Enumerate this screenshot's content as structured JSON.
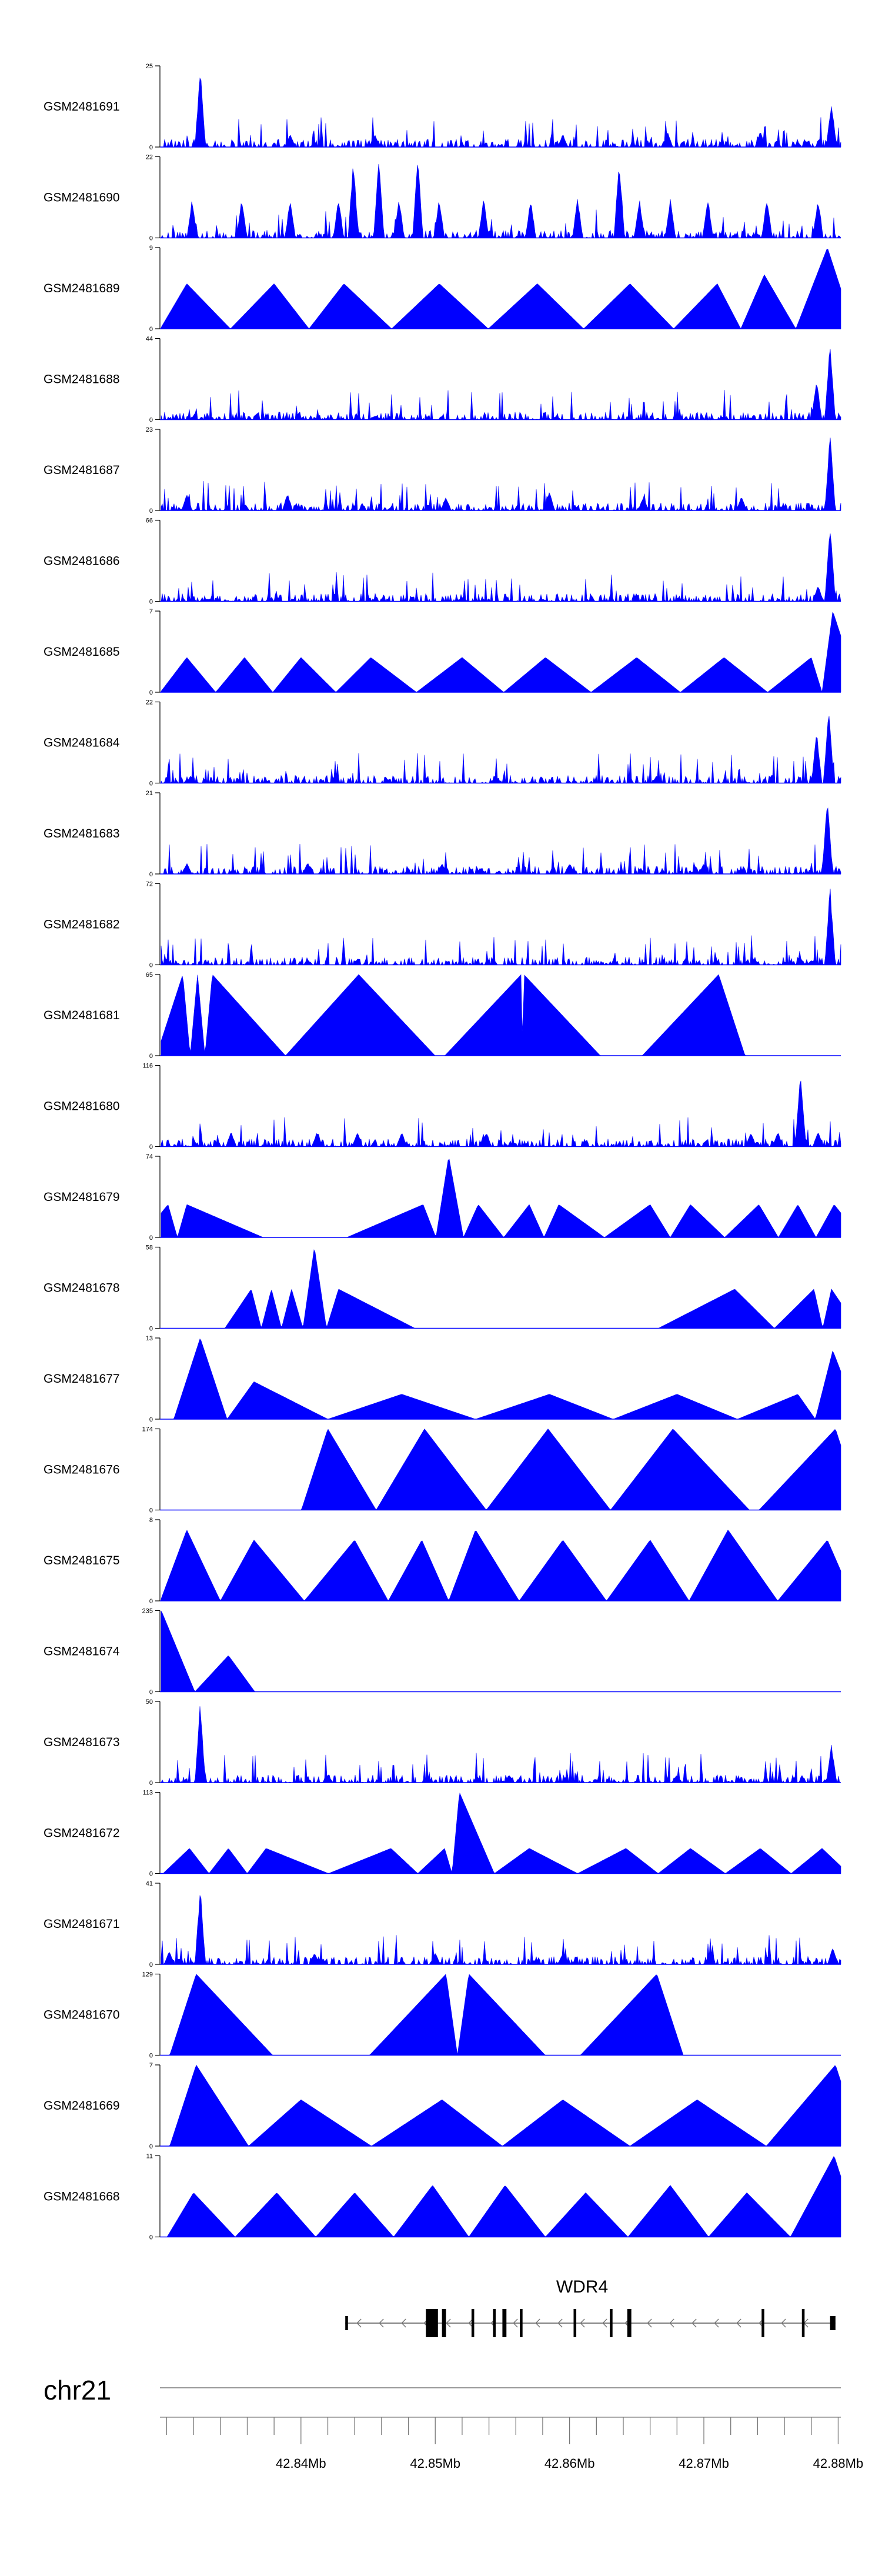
{
  "chart_data": {
    "type": "area",
    "title": "",
    "xlabel": "",
    "ylabel": "",
    "chromosome": "chr21",
    "xlim": [
      42.8295,
      42.8802
    ],
    "x_ticks": [
      42.84,
      42.85,
      42.86,
      42.87,
      42.88
    ],
    "x_tick_labels": [
      "42.84Mb",
      "42.85Mb",
      "42.86Mb",
      "42.87Mb",
      "42.88Mb"
    ],
    "series_color": "#0000ff",
    "tracks": [
      {
        "name": "GSM2481691",
        "ymax": 25,
        "ytick_labels": [
          "25",
          "0"
        ],
        "peaks": [
          [
            42.8325,
            25
          ],
          [
            42.8392,
            4
          ],
          [
            42.8455,
            4
          ],
          [
            42.8595,
            4
          ],
          [
            42.8673,
            5
          ],
          [
            42.8742,
            5
          ],
          [
            42.8795,
            14
          ]
        ]
      },
      {
        "name": "GSM2481690",
        "ymax": 22,
        "ytick_labels": [
          "22",
          "0"
        ],
        "peaks": [
          [
            42.8319,
            11
          ],
          [
            42.8356,
            11
          ],
          [
            42.8392,
            11
          ],
          [
            42.8428,
            11
          ],
          [
            42.8439,
            22
          ],
          [
            42.8458,
            22
          ],
          [
            42.8473,
            11
          ],
          [
            42.8487,
            22
          ],
          [
            42.8503,
            11
          ],
          [
            42.8536,
            11
          ],
          [
            42.8571,
            11
          ],
          [
            42.8606,
            11
          ],
          [
            42.8637,
            22
          ],
          [
            42.8652,
            11
          ],
          [
            42.8675,
            11
          ],
          [
            42.8703,
            11
          ],
          [
            42.8747,
            11
          ],
          [
            42.8785,
            11
          ]
        ]
      },
      {
        "name": "GSM2481689",
        "ymax": 9,
        "ytick_labels": [
          "9",
          "0"
        ],
        "peaks": [
          [
            42.8315,
            5
          ],
          [
            42.838,
            5
          ],
          [
            42.8432,
            5
          ],
          [
            42.8503,
            5
          ],
          [
            42.8576,
            5
          ],
          [
            42.8645,
            5
          ],
          [
            42.871,
            5
          ],
          [
            42.8745,
            6
          ],
          [
            42.8792,
            9
          ]
        ]
      },
      {
        "name": "GSM2481688",
        "ymax": 44,
        "ytick_labels": [
          "44",
          "0"
        ],
        "peaks": [
          [
            42.832,
            2
          ],
          [
            42.8455,
            2
          ],
          [
            42.859,
            2
          ],
          [
            42.8715,
            2
          ],
          [
            42.8784,
            22
          ],
          [
            42.8794,
            44
          ]
        ]
      },
      {
        "name": "GSM2481687",
        "ymax": 23,
        "ytick_labels": [
          "23",
          "0"
        ],
        "peaks": [
          [
            42.8315,
            5
          ],
          [
            42.839,
            5
          ],
          [
            42.8508,
            4
          ],
          [
            42.8585,
            6
          ],
          [
            42.8655,
            4
          ],
          [
            42.8728,
            4
          ],
          [
            42.8794,
            23
          ]
        ]
      },
      {
        "name": "GSM2481686",
        "ymax": 66,
        "ytick_labels": [
          "66",
          "0"
        ],
        "peaks": [
          [
            42.833,
            2
          ],
          [
            42.858,
            2
          ],
          [
            42.8785,
            14
          ],
          [
            42.8794,
            66
          ]
        ]
      },
      {
        "name": "GSM2481685",
        "ymax": 7,
        "ytick_labels": [
          "7",
          "0"
        ],
        "peaks": [
          [
            42.8315,
            3
          ],
          [
            42.8358,
            3
          ],
          [
            42.84,
            3
          ],
          [
            42.8452,
            3
          ],
          [
            42.852,
            3
          ],
          [
            42.8582,
            3
          ],
          [
            42.865,
            3
          ],
          [
            42.8715,
            3
          ],
          [
            42.878,
            3
          ],
          [
            42.8796,
            7
          ]
        ]
      },
      {
        "name": "GSM2481684",
        "ymax": 22,
        "ytick_labels": [
          "22",
          "0"
        ],
        "peaks": [
          [
            42.8318,
            2
          ],
          [
            42.8425,
            2
          ],
          [
            42.8545,
            2
          ],
          [
            42.8665,
            2
          ],
          [
            42.8784,
            14
          ],
          [
            42.8793,
            22
          ]
        ]
      },
      {
        "name": "GSM2481683",
        "ymax": 21,
        "ytick_labels": [
          "21",
          "0"
        ],
        "peaks": [
          [
            42.8315,
            3
          ],
          [
            42.8405,
            3
          ],
          [
            42.8505,
            3
          ],
          [
            42.86,
            3
          ],
          [
            42.87,
            3
          ],
          [
            42.8792,
            21
          ]
        ]
      },
      {
        "name": "GSM2481682",
        "ymax": 72,
        "ytick_labels": [
          "72",
          "0"
        ],
        "peaks": [
          [
            42.833,
            2
          ],
          [
            42.878,
            4
          ],
          [
            42.8794,
            72
          ]
        ]
      },
      {
        "name": "GSM2481681",
        "ymax": 65,
        "ytick_labels": [
          "65",
          "0"
        ],
        "peaks": [
          [
            42.8312,
            65
          ],
          [
            42.8323,
            65
          ],
          [
            42.8334,
            65
          ],
          [
            42.8443,
            65
          ],
          [
            42.8564,
            65
          ],
          [
            42.8566,
            65
          ],
          [
            42.8711,
            65
          ]
        ]
      },
      {
        "name": "GSM2481680",
        "ymax": 116,
        "ytick_labels": [
          "116",
          "0"
        ],
        "peaks": [
          [
            42.8348,
            22
          ],
          [
            42.8412,
            22
          ],
          [
            42.8442,
            22
          ],
          [
            42.8475,
            22
          ],
          [
            42.8538,
            22
          ],
          [
            42.8735,
            22
          ],
          [
            42.8755,
            22
          ],
          [
            42.8772,
            116
          ],
          [
            42.8785,
            22
          ]
        ]
      },
      {
        "name": "GSM2481679",
        "ymax": 74,
        "ytick_labels": [
          "74",
          "0"
        ],
        "peaks": [
          [
            42.8301,
            30
          ],
          [
            42.8315,
            30
          ],
          [
            42.8491,
            30
          ],
          [
            42.851,
            74
          ],
          [
            42.8532,
            30
          ],
          [
            42.857,
            30
          ],
          [
            42.8592,
            30
          ],
          [
            42.866,
            30
          ],
          [
            42.869,
            30
          ],
          [
            42.8741,
            30
          ],
          [
            42.877,
            30
          ],
          [
            42.8797,
            30
          ]
        ]
      },
      {
        "name": "GSM2481678",
        "ymax": 58,
        "ytick_labels": [
          "58",
          "0"
        ],
        "peaks": [
          [
            42.8363,
            28
          ],
          [
            42.8378,
            28
          ],
          [
            42.8393,
            28
          ],
          [
            42.841,
            58
          ],
          [
            42.8428,
            28
          ],
          [
            42.8723,
            28
          ],
          [
            42.8782,
            28
          ],
          [
            42.8795,
            28
          ]
        ]
      },
      {
        "name": "GSM2481677",
        "ymax": 13,
        "ytick_labels": [
          "13",
          "0"
        ],
        "peaks": [
          [
            42.8325,
            13
          ],
          [
            42.8365,
            6
          ],
          [
            42.8475,
            4
          ],
          [
            42.8585,
            4
          ],
          [
            42.868,
            4
          ],
          [
            42.877,
            4
          ],
          [
            42.8796,
            11
          ]
        ]
      },
      {
        "name": "GSM2481676",
        "ymax": 174,
        "ytick_labels": [
          "174",
          "0"
        ],
        "peaks": [
          [
            42.842,
            174
          ],
          [
            42.8492,
            174
          ],
          [
            42.8584,
            174
          ],
          [
            42.8677,
            174
          ],
          [
            42.8798,
            174
          ]
        ]
      },
      {
        "name": "GSM2481675",
        "ymax": 8,
        "ytick_labels": [
          "8",
          "0"
        ],
        "peaks": [
          [
            42.8315,
            7
          ],
          [
            42.8365,
            6
          ],
          [
            42.844,
            6
          ],
          [
            42.849,
            6
          ],
          [
            42.853,
            7
          ],
          [
            42.8595,
            6
          ],
          [
            42.866,
            6
          ],
          [
            42.8718,
            7
          ],
          [
            42.8792,
            6
          ]
        ]
      },
      {
        "name": "GSM2481674",
        "ymax": 235,
        "ytick_labels": [
          "235",
          "0"
        ],
        "peaks": [
          [
            42.8296,
            235
          ],
          [
            42.8346,
            105
          ]
        ]
      },
      {
        "name": "GSM2481673",
        "ymax": 50,
        "ytick_labels": [
          "50",
          "0"
        ],
        "peaks": [
          [
            42.8325,
            50
          ],
          [
            42.842,
            5
          ],
          [
            42.8555,
            5
          ],
          [
            42.868,
            5
          ],
          [
            42.8795,
            24
          ]
        ]
      },
      {
        "name": "GSM2481672",
        "ymax": 113,
        "ytick_labels": [
          "113",
          "0"
        ],
        "peaks": [
          [
            42.8317,
            35
          ],
          [
            42.8346,
            35
          ],
          [
            42.8374,
            35
          ],
          [
            42.8467,
            35
          ],
          [
            42.8507,
            35
          ],
          [
            42.8518,
            113
          ],
          [
            42.857,
            35
          ],
          [
            42.8642,
            35
          ],
          [
            42.869,
            35
          ],
          [
            42.8742,
            35
          ],
          [
            42.8788,
            35
          ]
        ]
      },
      {
        "name": "GSM2481671",
        "ymax": 41,
        "ytick_labels": [
          "41",
          "0"
        ],
        "peaks": [
          [
            42.8302,
            7
          ],
          [
            42.8325,
            41
          ],
          [
            42.841,
            6
          ],
          [
            42.85,
            6
          ],
          [
            42.8595,
            6
          ],
          [
            42.8705,
            6
          ],
          [
            42.8796,
            9
          ]
        ]
      },
      {
        "name": "GSM2481670",
        "ymax": 129,
        "ytick_labels": [
          "129",
          "0"
        ],
        "peaks": [
          [
            42.8322,
            129
          ],
          [
            42.8508,
            129
          ],
          [
            42.8525,
            129
          ],
          [
            42.8665,
            129
          ]
        ]
      },
      {
        "name": "GSM2481669",
        "ymax": 7,
        "ytick_labels": [
          "7",
          "0"
        ],
        "peaks": [
          [
            42.8322,
            7
          ],
          [
            42.84,
            4
          ],
          [
            42.8505,
            4
          ],
          [
            42.8595,
            4
          ],
          [
            42.8695,
            4
          ],
          [
            42.8798,
            7
          ]
        ]
      },
      {
        "name": "GSM2481668",
        "ymax": 11,
        "ytick_labels": [
          "11",
          "0"
        ],
        "peaks": [
          [
            42.832,
            6
          ],
          [
            42.8382,
            6
          ],
          [
            42.844,
            6
          ],
          [
            42.8498,
            7
          ],
          [
            42.8552,
            7
          ],
          [
            42.8612,
            6
          ],
          [
            42.8675,
            7
          ],
          [
            42.8732,
            6
          ],
          [
            42.8797,
            11
          ]
        ]
      }
    ],
    "gene": {
      "name": "WDR4",
      "strand": "-",
      "start": 42.8433,
      "end": 42.8798,
      "exons": [
        [
          42.8433,
          42.8435
        ],
        [
          42.8493,
          42.8502
        ],
        [
          42.8505,
          42.8508
        ],
        [
          42.8527,
          42.8529
        ],
        [
          42.8543,
          42.8545
        ],
        [
          42.855,
          42.8553
        ],
        [
          42.8563,
          42.8565
        ],
        [
          42.8603,
          42.8605
        ],
        [
          42.863,
          42.8632
        ],
        [
          42.8643,
          42.8646
        ],
        [
          42.8743,
          42.8745
        ],
        [
          42.8773,
          42.8775
        ],
        [
          42.8794,
          42.8798
        ]
      ]
    }
  }
}
